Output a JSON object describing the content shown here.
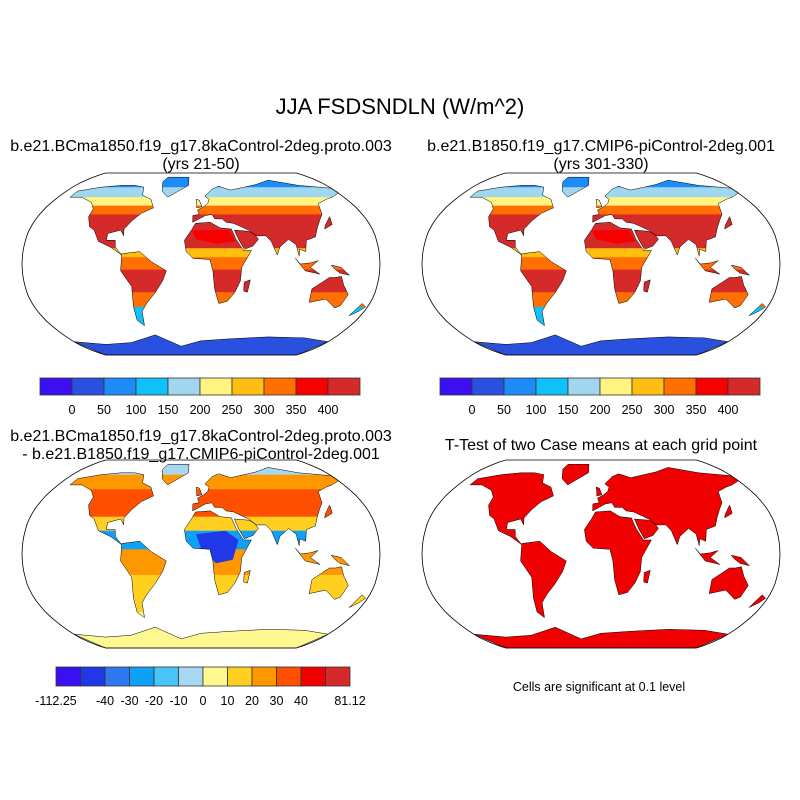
{
  "title": "JJA FSDSNDLN (W/m^2)",
  "panels": [
    {
      "title1": "b.e21.BCma1850.f19_g17.8kaControl-2deg.proto.003",
      "title2": "(yrs 21-50)"
    },
    {
      "title1": "b.e21.B1850.f19_g17.CMIP6-piControl-2deg.001",
      "title2": "(yrs 301-330)"
    },
    {
      "title1": "b.e21.BCma1850.f19_g17.8kaControl-2deg.proto.003",
      "title2": "- b.e21.B1850.f19_g17.CMIP6-piControl-2deg.001"
    },
    {
      "title1": "T-Test of two Case means at each grid point",
      "title2": ""
    }
  ],
  "colorbar_abs": {
    "colors": [
      "#3a10f0",
      "#2a50e0",
      "#1e8cf8",
      "#12c0f8",
      "#a0d6f0",
      "#fff480",
      "#ffbe10",
      "#ff7000",
      "#f80000",
      "#d42a2a"
    ],
    "labels": [
      "0",
      "50",
      "100",
      "150",
      "200",
      "250",
      "300",
      "350",
      "400"
    ]
  },
  "colorbar_diff": {
    "colors": [
      "#3a10f0",
      "#2038e8",
      "#3078f0",
      "#10a0f8",
      "#48c4f8",
      "#a8d8f0",
      "#fff890",
      "#ffd020",
      "#ff9800",
      "#ff5000",
      "#f00000",
      "#d42a2a"
    ],
    "labels": [
      "-112.25",
      "-40",
      "-30",
      "-20",
      "-10",
      "0",
      "10",
      "20",
      "30",
      "40",
      "81.12"
    ]
  },
  "ttest_color": "#f00000",
  "ttest_note": "Cells are significant at 0.1 level"
}
